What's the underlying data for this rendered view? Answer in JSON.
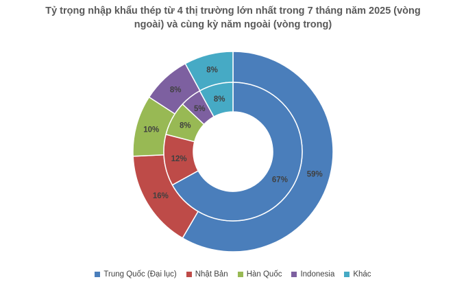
{
  "chart_data": {
    "type": "donut",
    "title": "Tỷ trọng nhập khẩu thép từ 4 thị trường lớn nhất trong 7 tháng năm 2025 (vòng ngoài) và cùng kỳ năm ngoài (vòng trong)",
    "title_lines": [
      "Tỷ trọng nhập khẩu thép từ 4 thị trường lớn nhất trong 7 tháng năm 2025 (vòng",
      "ngoài) và cùng kỳ năm ngoài (vòng trong)"
    ],
    "categories": [
      "Trung Quốc (Đại lục)",
      "Nhật Bản",
      "Hàn Quốc",
      "Indonesia",
      "Khác"
    ],
    "colors": [
      "#4a7ebb",
      "#be4b48",
      "#98b954",
      "#7d60a0",
      "#46aac5"
    ],
    "series": [
      {
        "ring": "outer",
        "values": [
          59,
          16,
          10,
          8,
          8
        ],
        "labels": [
          "59%",
          "16%",
          "10%",
          "8%",
          "8%"
        ]
      },
      {
        "ring": "inner",
        "values": [
          67,
          12,
          8,
          5,
          8
        ],
        "labels": [
          "67%",
          "12%",
          "8%",
          "5%",
          "8%"
        ]
      }
    ],
    "legend_position": "bottom"
  }
}
